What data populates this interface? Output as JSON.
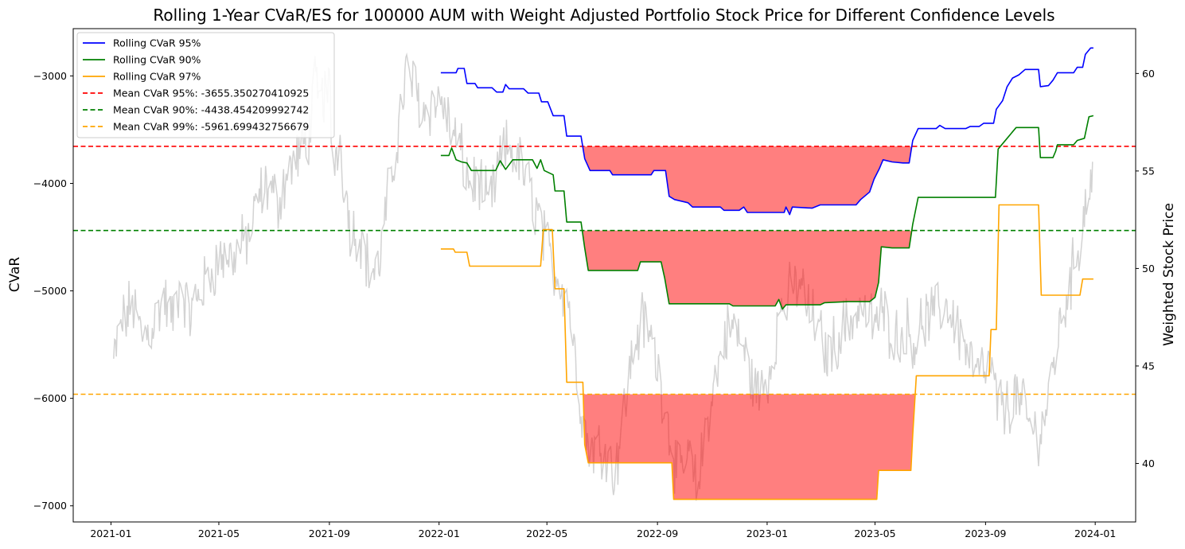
{
  "chart_data": {
    "type": "line",
    "title": "Rolling 1-Year CVaR/ES for 100000 AUM with Weight Adjusted Portfolio Stock Price for Different Confidence Levels",
    "ylabel": "CVaR",
    "y2label": "Weighted Stock Price",
    "xlabel": "",
    "x_ticks": [
      "2021-01",
      "2021-05",
      "2021-09",
      "2022-01",
      "2022-05",
      "2022-09",
      "2023-01",
      "2023-05",
      "2023-09",
      "2024-01"
    ],
    "y_ticks": [
      -3000,
      -4000,
      -5000,
      -6000,
      -7000
    ],
    "y2_ticks": [
      60,
      55,
      50,
      45,
      40
    ],
    "xlim": [
      "2020-11-20",
      "2024-02-15"
    ],
    "ylim": [
      -7150,
      -2560
    ],
    "y2lim": [
      37.0,
      62.3
    ],
    "grid": false,
    "legend_position": "top-left",
    "colors": {
      "cvar95": "#0000ff",
      "cvar90": "#008000",
      "cvar97": "#ffa500",
      "mean95": "#ff0000",
      "mean90": "#008000",
      "mean99": "#ffa500",
      "fill": "#ff0000",
      "stock": "#d3d3d3"
    },
    "legend": [
      "Rolling CVaR 95%",
      "Rolling CVaR 90%",
      "Rolling CVaR 97%",
      "Mean CVaR 95%: -3655.350270410925",
      "Mean CVaR 90%: -4438.454209992742",
      "Mean CVaR 99%: -5961.699432756679"
    ],
    "means": {
      "cvar95": -3655.350270410925,
      "cvar90": -4438.454209992742,
      "cvar99": -5961.699432756679
    },
    "series": [
      {
        "name": "Rolling CVaR 95%",
        "points": [
          [
            "2022-01-03",
            -2970
          ],
          [
            "2022-01-20",
            -2970
          ],
          [
            "2022-01-22",
            -2930
          ],
          [
            "2022-01-29",
            -2930
          ],
          [
            "2022-02-01",
            -3070
          ],
          [
            "2022-02-10",
            -3070
          ],
          [
            "2022-02-13",
            -3110
          ],
          [
            "2022-03-01",
            -3110
          ],
          [
            "2022-03-06",
            -3150
          ],
          [
            "2022-03-13",
            -3150
          ],
          [
            "2022-03-16",
            -3080
          ],
          [
            "2022-03-20",
            -3120
          ],
          [
            "2022-04-05",
            -3120
          ],
          [
            "2022-04-10",
            -3160
          ],
          [
            "2022-04-22",
            -3160
          ],
          [
            "2022-04-25",
            -3240
          ],
          [
            "2022-05-02",
            -3240
          ],
          [
            "2022-05-08",
            -3370
          ],
          [
            "2022-05-20",
            -3370
          ],
          [
            "2022-05-23",
            -3560
          ],
          [
            "2022-06-08",
            -3560
          ],
          [
            "2022-06-12",
            -3770
          ],
          [
            "2022-06-18",
            -3880
          ],
          [
            "2022-07-10",
            -3880
          ],
          [
            "2022-07-13",
            -3920
          ],
          [
            "2022-08-25",
            -3920
          ],
          [
            "2022-08-28",
            -3880
          ],
          [
            "2022-09-10",
            -3880
          ],
          [
            "2022-09-14",
            -4120
          ],
          [
            "2022-09-20",
            -4150
          ],
          [
            "2022-10-05",
            -4180
          ],
          [
            "2022-10-10",
            -4220
          ],
          [
            "2022-11-10",
            -4220
          ],
          [
            "2022-11-14",
            -4250
          ],
          [
            "2022-12-01",
            -4250
          ],
          [
            "2022-12-06",
            -4220
          ],
          [
            "2022-12-10",
            -4270
          ],
          [
            "2023-01-20",
            -4270
          ],
          [
            "2023-01-22",
            -4220
          ],
          [
            "2023-01-26",
            -4290
          ],
          [
            "2023-01-29",
            -4220
          ],
          [
            "2023-02-20",
            -4230
          ],
          [
            "2023-03-01",
            -4200
          ],
          [
            "2023-04-10",
            -4200
          ],
          [
            "2023-04-15",
            -4150
          ],
          [
            "2023-04-25",
            -4080
          ],
          [
            "2023-04-30",
            -3960
          ],
          [
            "2023-05-06",
            -3860
          ],
          [
            "2023-05-10",
            -3780
          ],
          [
            "2023-05-20",
            -3800
          ],
          [
            "2023-06-01",
            -3810
          ],
          [
            "2023-06-08",
            -3810
          ],
          [
            "2023-06-12",
            -3600
          ],
          [
            "2023-06-18",
            -3490
          ],
          [
            "2023-07-08",
            -3490
          ],
          [
            "2023-07-12",
            -3460
          ],
          [
            "2023-07-18",
            -3490
          ],
          [
            "2023-08-10",
            -3490
          ],
          [
            "2023-08-15",
            -3470
          ],
          [
            "2023-08-25",
            -3470
          ],
          [
            "2023-08-30",
            -3440
          ],
          [
            "2023-09-10",
            -3440
          ],
          [
            "2023-09-13",
            -3310
          ],
          [
            "2023-09-20",
            -3230
          ],
          [
            "2023-09-25",
            -3100
          ],
          [
            "2023-10-01",
            -3020
          ],
          [
            "2023-10-08",
            -2990
          ],
          [
            "2023-10-15",
            -2940
          ],
          [
            "2023-10-30",
            -2940
          ],
          [
            "2023-11-01",
            -3100
          ],
          [
            "2023-11-10",
            -3090
          ],
          [
            "2023-11-15",
            -3040
          ],
          [
            "2023-11-20",
            -2970
          ],
          [
            "2023-12-08",
            -2970
          ],
          [
            "2023-12-12",
            -2920
          ],
          [
            "2023-12-18",
            -2920
          ],
          [
            "2023-12-21",
            -2800
          ],
          [
            "2023-12-27",
            -2740
          ],
          [
            "2023-12-30",
            -2740
          ]
        ]
      },
      {
        "name": "Rolling CVaR 90%",
        "points": [
          [
            "2022-01-03",
            -3740
          ],
          [
            "2022-01-12",
            -3740
          ],
          [
            "2022-01-15",
            -3670
          ],
          [
            "2022-01-20",
            -3780
          ],
          [
            "2022-01-26",
            -3800
          ],
          [
            "2022-02-01",
            -3810
          ],
          [
            "2022-02-06",
            -3880
          ],
          [
            "2022-03-05",
            -3880
          ],
          [
            "2022-03-10",
            -3790
          ],
          [
            "2022-03-16",
            -3870
          ],
          [
            "2022-03-24",
            -3780
          ],
          [
            "2022-04-15",
            -3780
          ],
          [
            "2022-04-20",
            -3860
          ],
          [
            "2022-04-24",
            -3780
          ],
          [
            "2022-04-28",
            -3880
          ],
          [
            "2022-05-08",
            -3920
          ],
          [
            "2022-05-10",
            -4070
          ],
          [
            "2022-05-20",
            -4070
          ],
          [
            "2022-05-23",
            -4360
          ],
          [
            "2022-06-08",
            -4360
          ],
          [
            "2022-06-12",
            -4600
          ],
          [
            "2022-06-16",
            -4810
          ],
          [
            "2022-08-10",
            -4810
          ],
          [
            "2022-08-13",
            -4730
          ],
          [
            "2022-09-05",
            -4730
          ],
          [
            "2022-09-09",
            -4880
          ],
          [
            "2022-09-14",
            -5120
          ],
          [
            "2022-11-20",
            -5120
          ],
          [
            "2022-11-24",
            -5140
          ],
          [
            "2023-01-10",
            -5140
          ],
          [
            "2023-01-14",
            -5080
          ],
          [
            "2023-01-18",
            -5170
          ],
          [
            "2023-01-22",
            -5130
          ],
          [
            "2023-03-01",
            -5130
          ],
          [
            "2023-03-06",
            -5110
          ],
          [
            "2023-04-01",
            -5100
          ],
          [
            "2023-04-25",
            -5100
          ],
          [
            "2023-05-01",
            -5060
          ],
          [
            "2023-05-05",
            -4920
          ],
          [
            "2023-05-08",
            -4590
          ],
          [
            "2023-05-20",
            -4600
          ],
          [
            "2023-06-08",
            -4600
          ],
          [
            "2023-06-12",
            -4380
          ],
          [
            "2023-06-18",
            -4130
          ],
          [
            "2023-09-12",
            -4130
          ],
          [
            "2023-09-15",
            -3680
          ],
          [
            "2023-09-25",
            -3580
          ],
          [
            "2023-10-05",
            -3480
          ],
          [
            "2023-10-30",
            -3480
          ],
          [
            "2023-11-01",
            -3760
          ],
          [
            "2023-11-15",
            -3760
          ],
          [
            "2023-11-18",
            -3700
          ],
          [
            "2023-11-20",
            -3640
          ],
          [
            "2023-12-08",
            -3640
          ],
          [
            "2023-12-12",
            -3600
          ],
          [
            "2023-12-20",
            -3580
          ],
          [
            "2023-12-25",
            -3380
          ],
          [
            "2023-12-30",
            -3370
          ]
        ]
      },
      {
        "name": "Rolling CVaR 97%",
        "points": [
          [
            "2022-01-03",
            -4610
          ],
          [
            "2022-01-17",
            -4610
          ],
          [
            "2022-01-19",
            -4640
          ],
          [
            "2022-02-01",
            -4640
          ],
          [
            "2022-02-04",
            -4770
          ],
          [
            "2022-04-24",
            -4770
          ],
          [
            "2022-04-27",
            -4430
          ],
          [
            "2022-05-07",
            -4430
          ],
          [
            "2022-05-10",
            -4980
          ],
          [
            "2022-05-20",
            -4980
          ],
          [
            "2022-05-23",
            -5850
          ],
          [
            "2022-06-10",
            -5850
          ],
          [
            "2022-06-12",
            -6430
          ],
          [
            "2022-06-16",
            -6600
          ],
          [
            "2022-09-17",
            -6600
          ],
          [
            "2022-09-19",
            -6940
          ],
          [
            "2023-05-03",
            -6940
          ],
          [
            "2023-05-05",
            -6670
          ],
          [
            "2023-06-10",
            -6670
          ],
          [
            "2023-06-12",
            -6340
          ],
          [
            "2023-06-16",
            -5790
          ],
          [
            "2023-09-05",
            -5790
          ],
          [
            "2023-09-07",
            -5360
          ],
          [
            "2023-09-13",
            -5360
          ],
          [
            "2023-09-16",
            -4200
          ],
          [
            "2023-10-30",
            -4200
          ],
          [
            "2023-11-02",
            -5040
          ],
          [
            "2023-12-15",
            -5040
          ],
          [
            "2023-12-18",
            -4890
          ],
          [
            "2023-12-30",
            -4890
          ]
        ]
      }
    ],
    "stock_series": {
      "name": "Weighted Stock Price",
      "start": "2021-01-04",
      "end": "2023-12-29",
      "anchors": [
        [
          "2021-01-04",
          45.2
        ],
        [
          "2021-01-12",
          47.0
        ],
        [
          "2021-01-25",
          48.2
        ],
        [
          "2021-02-05",
          46.5
        ],
        [
          "2021-02-15",
          47.0
        ],
        [
          "2021-03-01",
          48.5
        ],
        [
          "2021-03-10",
          47.3
        ],
        [
          "2021-03-20",
          49.5
        ],
        [
          "2021-03-28",
          47.4
        ],
        [
          "2021-04-05",
          48.3
        ],
        [
          "2021-04-20",
          49.6
        ],
        [
          "2021-05-01",
          50.5
        ],
        [
          "2021-05-15",
          50.6
        ],
        [
          "2021-05-25",
          51.0
        ],
        [
          "2021-06-05",
          51.8
        ],
        [
          "2021-06-15",
          53.7
        ],
        [
          "2021-06-25",
          54.3
        ],
        [
          "2021-07-05",
          53.3
        ],
        [
          "2021-07-15",
          54.7
        ],
        [
          "2021-07-25",
          55.6
        ],
        [
          "2021-08-01",
          56.0
        ],
        [
          "2021-08-10",
          57.0
        ],
        [
          "2021-08-15",
          59.5
        ],
        [
          "2021-08-20",
          58.5
        ],
        [
          "2021-09-01",
          59.3
        ],
        [
          "2021-09-05",
          55.0
        ],
        [
          "2021-09-12",
          57.0
        ],
        [
          "2021-09-18",
          54.2
        ],
        [
          "2021-09-25",
          52.0
        ],
        [
          "2021-10-05",
          51.8
        ],
        [
          "2021-10-15",
          50.0
        ],
        [
          "2021-10-25",
          49.8
        ],
        [
          "2021-11-05",
          53.5
        ],
        [
          "2021-11-15",
          56.5
        ],
        [
          "2021-11-25",
          60.0
        ],
        [
          "2021-12-05",
          59.3
        ],
        [
          "2021-12-15",
          58.0
        ],
        [
          "2021-12-25",
          58.5
        ],
        [
          "2022-01-05",
          58.5
        ],
        [
          "2022-01-15",
          57.0
        ],
        [
          "2022-01-25",
          56.0
        ],
        [
          "2022-02-05",
          54.2
        ],
        [
          "2022-02-15",
          54.5
        ],
        [
          "2022-02-25",
          53.0
        ],
        [
          "2022-03-10",
          55.5
        ],
        [
          "2022-03-20",
          56.3
        ],
        [
          "2022-03-30",
          55.5
        ],
        [
          "2022-04-10",
          54.3
        ],
        [
          "2022-04-20",
          53.0
        ],
        [
          "2022-04-28",
          51.5
        ],
        [
          "2022-05-08",
          50.0
        ],
        [
          "2022-05-15",
          49.5
        ],
        [
          "2022-05-25",
          48.5
        ],
        [
          "2022-06-05",
          44.0
        ],
        [
          "2022-06-15",
          41.0
        ],
        [
          "2022-06-25",
          40.8
        ],
        [
          "2022-07-05",
          41.0
        ],
        [
          "2022-07-15",
          39.3
        ],
        [
          "2022-07-25",
          42.5
        ],
        [
          "2022-08-05",
          45.8
        ],
        [
          "2022-08-15",
          47.3
        ],
        [
          "2022-08-25",
          46.5
        ],
        [
          "2022-09-05",
          44.0
        ],
        [
          "2022-09-15",
          41.5
        ],
        [
          "2022-09-25",
          39.0
        ],
        [
          "2022-10-05",
          40.5
        ],
        [
          "2022-10-15",
          38.5
        ],
        [
          "2022-10-25",
          42.0
        ],
        [
          "2022-11-05",
          44.5
        ],
        [
          "2022-11-15",
          46.5
        ],
        [
          "2022-11-25",
          47.0
        ],
        [
          "2022-12-05",
          46.0
        ],
        [
          "2022-12-15",
          44.3
        ],
        [
          "2022-12-25",
          43.5
        ],
        [
          "2023-01-05",
          45.0
        ],
        [
          "2023-01-15",
          47.8
        ],
        [
          "2023-01-25",
          48.5
        ],
        [
          "2023-02-05",
          49.5
        ],
        [
          "2023-02-15",
          48.0
        ],
        [
          "2023-02-25",
          47.0
        ],
        [
          "2023-03-10",
          45.5
        ],
        [
          "2023-03-20",
          46.5
        ],
        [
          "2023-04-01",
          47.2
        ],
        [
          "2023-04-15",
          48.0
        ],
        [
          "2023-04-28",
          47.3
        ],
        [
          "2023-05-10",
          47.6
        ],
        [
          "2023-05-25",
          46.5
        ],
        [
          "2023-06-05",
          47.0
        ],
        [
          "2023-06-15",
          46.3
        ],
        [
          "2023-06-25",
          47.5
        ],
        [
          "2023-07-05",
          47.5
        ],
        [
          "2023-07-20",
          48.2
        ],
        [
          "2023-08-01",
          47.0
        ],
        [
          "2023-08-15",
          45.3
        ],
        [
          "2023-08-25",
          44.5
        ],
        [
          "2023-09-05",
          45.0
        ],
        [
          "2023-09-15",
          43.0
        ],
        [
          "2023-09-25",
          42.8
        ],
        [
          "2023-10-05",
          43.5
        ],
        [
          "2023-10-15",
          42.5
        ],
        [
          "2023-10-25",
          41.5
        ],
        [
          "2023-11-05",
          42.0
        ],
        [
          "2023-11-15",
          45.0
        ],
        [
          "2023-11-25",
          47.5
        ],
        [
          "2023-12-05",
          49.5
        ],
        [
          "2023-12-15",
          51.5
        ],
        [
          "2023-12-22",
          53.5
        ],
        [
          "2023-12-29",
          55.0
        ]
      ]
    }
  }
}
